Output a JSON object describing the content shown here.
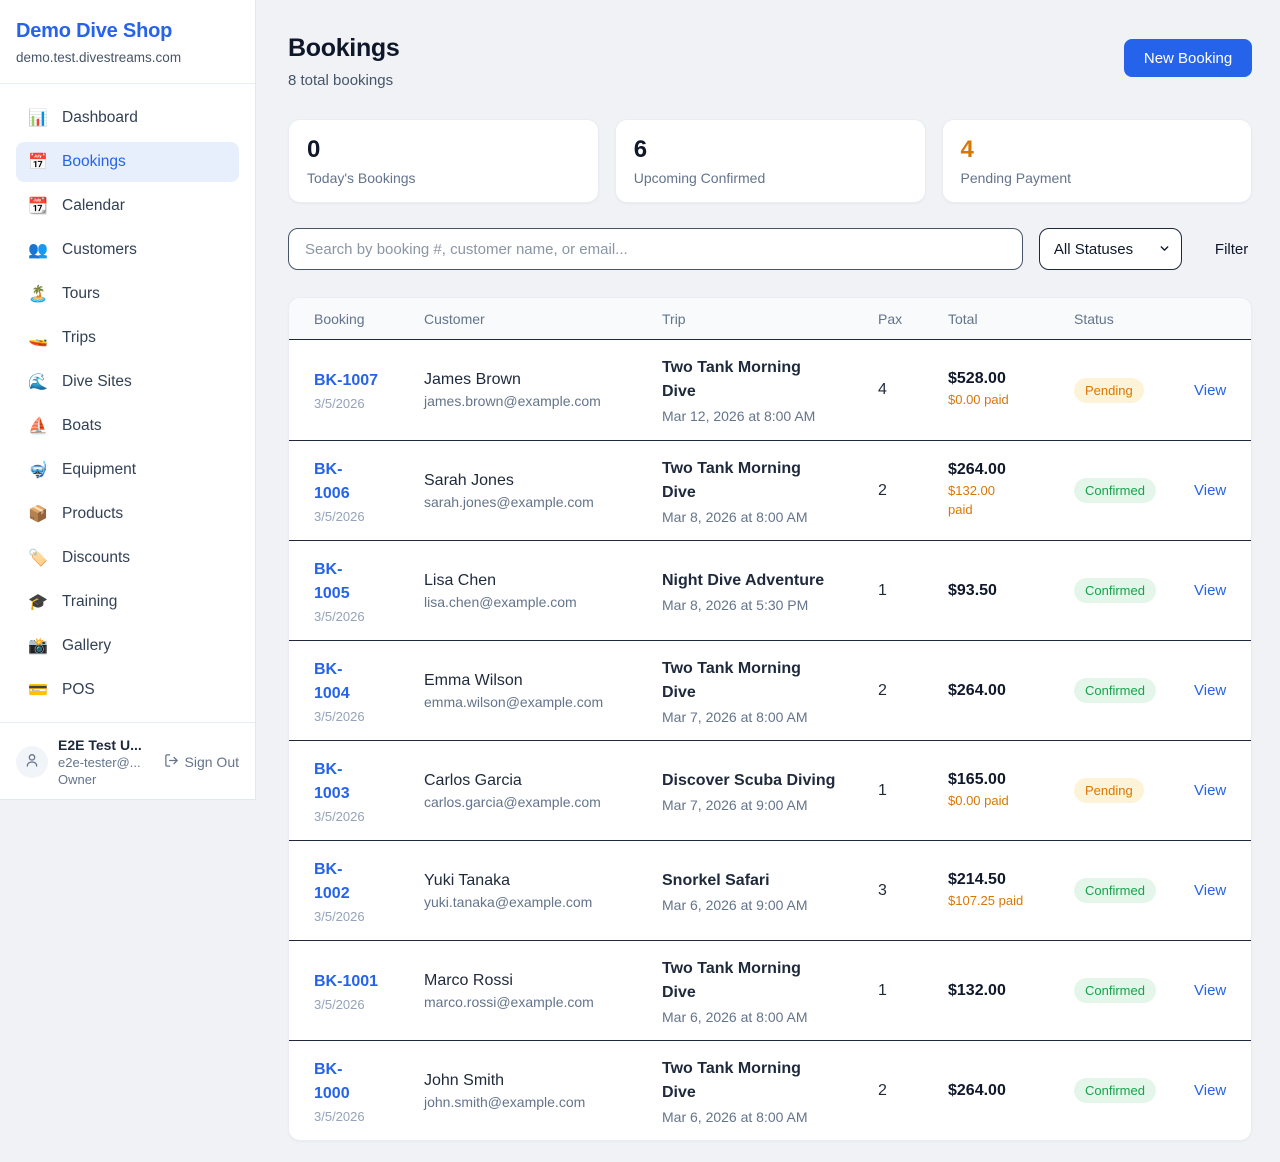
{
  "sidebar": {
    "shop_name": "Demo Dive Shop",
    "domain": "demo.test.divestreams.com",
    "items": [
      {
        "icon": "📊",
        "label": "Dashboard",
        "active": false
      },
      {
        "icon": "📅",
        "label": "Bookings",
        "active": true
      },
      {
        "icon": "📆",
        "label": "Calendar",
        "active": false
      },
      {
        "icon": "👥",
        "label": "Customers",
        "active": false
      },
      {
        "icon": "🏝️",
        "label": "Tours",
        "active": false
      },
      {
        "icon": "🚤",
        "label": "Trips",
        "active": false
      },
      {
        "icon": "🌊",
        "label": "Dive Sites",
        "active": false
      },
      {
        "icon": "⛵",
        "label": "Boats",
        "active": false
      },
      {
        "icon": "🤿",
        "label": "Equipment",
        "active": false
      },
      {
        "icon": "📦",
        "label": "Products",
        "active": false
      },
      {
        "icon": "🏷️",
        "label": "Discounts",
        "active": false
      },
      {
        "icon": "🎓",
        "label": "Training",
        "active": false
      },
      {
        "icon": "📸",
        "label": "Gallery",
        "active": false
      },
      {
        "icon": "💳",
        "label": "POS",
        "active": false
      }
    ],
    "user": {
      "name": "E2E Test U...",
      "email": "e2e-tester@...",
      "role": "Owner",
      "sign_out_label": "Sign Out"
    }
  },
  "header": {
    "title": "Bookings",
    "subtitle": "8 total bookings",
    "new_booking_label": "New Booking"
  },
  "stats": [
    {
      "value": "0",
      "label": "Today's Bookings",
      "value_color": "#0f172a"
    },
    {
      "value": "6",
      "label": "Upcoming Confirmed",
      "value_color": "#0f172a"
    },
    {
      "value": "4",
      "label": "Pending Payment",
      "value_color": "#d97706"
    }
  ],
  "filters": {
    "search_placeholder": "Search by booking #, customer name, or email...",
    "status_selected": "All Statuses",
    "filter_label": "Filter"
  },
  "table": {
    "columns": [
      "Booking",
      "Customer",
      "Trip",
      "Pax",
      "Total",
      "Status"
    ],
    "view_label": "View",
    "status_styles": {
      "Pending": {
        "text": "#d97706",
        "bg": "#fdf3d8"
      },
      "Confirmed": {
        "text": "#16a34a",
        "bg": "#e4f6ea"
      }
    },
    "rows": [
      {
        "id": "BK-1007",
        "id_two_line": false,
        "date": "3/5/2026",
        "customer": "James Brown",
        "email": "james.brown@example.com",
        "trip": "Two Tank Morning Dive",
        "trip_when": "Mar 12, 2026 at 8:00 AM",
        "pax": "4",
        "total": "$528.00",
        "paid": "$0.00 paid",
        "paid_two_line": false,
        "status": "Pending"
      },
      {
        "id": "BK-1006",
        "id_two_line": true,
        "date": "3/5/2026",
        "customer": "Sarah Jones",
        "email": "sarah.jones@example.com",
        "trip": "Two Tank Morning Dive",
        "trip_when": "Mar 8, 2026 at 8:00 AM",
        "pax": "2",
        "total": "$264.00",
        "paid": "$132.00 paid",
        "paid_two_line": true,
        "status": "Confirmed"
      },
      {
        "id": "BK-1005",
        "id_two_line": true,
        "date": "3/5/2026",
        "customer": "Lisa Chen",
        "email": "lisa.chen@example.com",
        "trip": "Night Dive Adventure",
        "trip_when": "Mar 8, 2026 at 5:30 PM",
        "pax": "1",
        "total": "$93.50",
        "paid": null,
        "paid_two_line": false,
        "status": "Confirmed"
      },
      {
        "id": "BK-1004",
        "id_two_line": true,
        "date": "3/5/2026",
        "customer": "Emma Wilson",
        "email": "emma.wilson@example.com",
        "trip": "Two Tank Morning Dive",
        "trip_when": "Mar 7, 2026 at 8:00 AM",
        "pax": "2",
        "total": "$264.00",
        "paid": null,
        "paid_two_line": false,
        "status": "Confirmed"
      },
      {
        "id": "BK-1003",
        "id_two_line": true,
        "date": "3/5/2026",
        "customer": "Carlos Garcia",
        "email": "carlos.garcia@example.com",
        "trip": "Discover Scuba Diving",
        "trip_when": "Mar 7, 2026 at 9:00 AM",
        "pax": "1",
        "total": "$165.00",
        "paid": "$0.00 paid",
        "paid_two_line": false,
        "status": "Pending"
      },
      {
        "id": "BK-1002",
        "id_two_line": true,
        "date": "3/5/2026",
        "customer": "Yuki Tanaka",
        "email": "yuki.tanaka@example.com",
        "trip": "Snorkel Safari",
        "trip_when": "Mar 6, 2026 at 9:00 AM",
        "pax": "3",
        "total": "$214.50",
        "paid": "$107.25 paid",
        "paid_two_line": false,
        "status": "Confirmed"
      },
      {
        "id": "BK-1001",
        "id_two_line": false,
        "date": "3/5/2026",
        "customer": "Marco Rossi",
        "email": "marco.rossi@example.com",
        "trip": "Two Tank Morning Dive",
        "trip_when": "Mar 6, 2026 at 8:00 AM",
        "pax": "1",
        "total": "$132.00",
        "paid": null,
        "paid_two_line": false,
        "status": "Confirmed"
      },
      {
        "id": "BK-1000",
        "id_two_line": true,
        "date": "3/5/2026",
        "customer": "John Smith",
        "email": "john.smith@example.com",
        "trip": "Two Tank Morning Dive",
        "trip_when": "Mar 6, 2026 at 8:00 AM",
        "pax": "2",
        "total": "$264.00",
        "paid": null,
        "paid_two_line": false,
        "status": "Confirmed"
      }
    ]
  }
}
